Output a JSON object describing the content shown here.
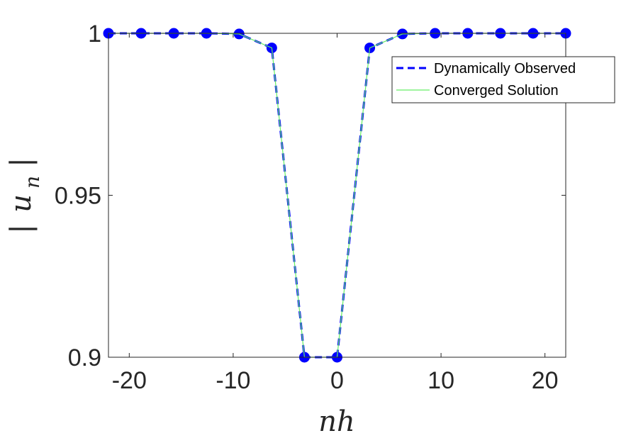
{
  "chart_data": {
    "type": "line",
    "x": [
      -22,
      -18.857,
      -15.714,
      -12.571,
      -9.429,
      -6.286,
      -3.143,
      0,
      3.143,
      6.286,
      9.429,
      12.571,
      15.714,
      18.857,
      22
    ],
    "series": [
      {
        "name": "Dynamically Observed",
        "values": [
          1.0,
          1.0,
          1.0,
          1.0,
          0.9998,
          0.9955,
          0.9,
          0.9,
          0.9955,
          0.9998,
          1.0,
          1.0,
          1.0,
          1.0,
          1.0
        ],
        "color": "#0000ff",
        "style": "dashed",
        "marker": "circle"
      },
      {
        "name": "Converged Solution",
        "values": [
          1.0,
          1.0,
          1.0,
          1.0,
          0.9998,
          0.9955,
          0.9,
          0.9,
          0.9955,
          0.9998,
          1.0,
          1.0,
          1.0,
          1.0,
          1.0
        ],
        "color": "#66ee66",
        "style": "solid"
      }
    ],
    "xlabel": "nh",
    "ylabel": "|u_n|",
    "xlim": [
      -22,
      22
    ],
    "ylim": [
      0.9,
      1.0
    ],
    "xticks": [
      -20,
      -10,
      0,
      10,
      20
    ],
    "xtick_labels": [
      "-20",
      "-10",
      "0",
      "10",
      "20"
    ],
    "yticks": [
      0.9,
      0.95,
      1.0
    ],
    "ytick_labels": [
      "0.9",
      "0.95",
      "1"
    ],
    "grid": false,
    "legend_position": "top-right"
  }
}
